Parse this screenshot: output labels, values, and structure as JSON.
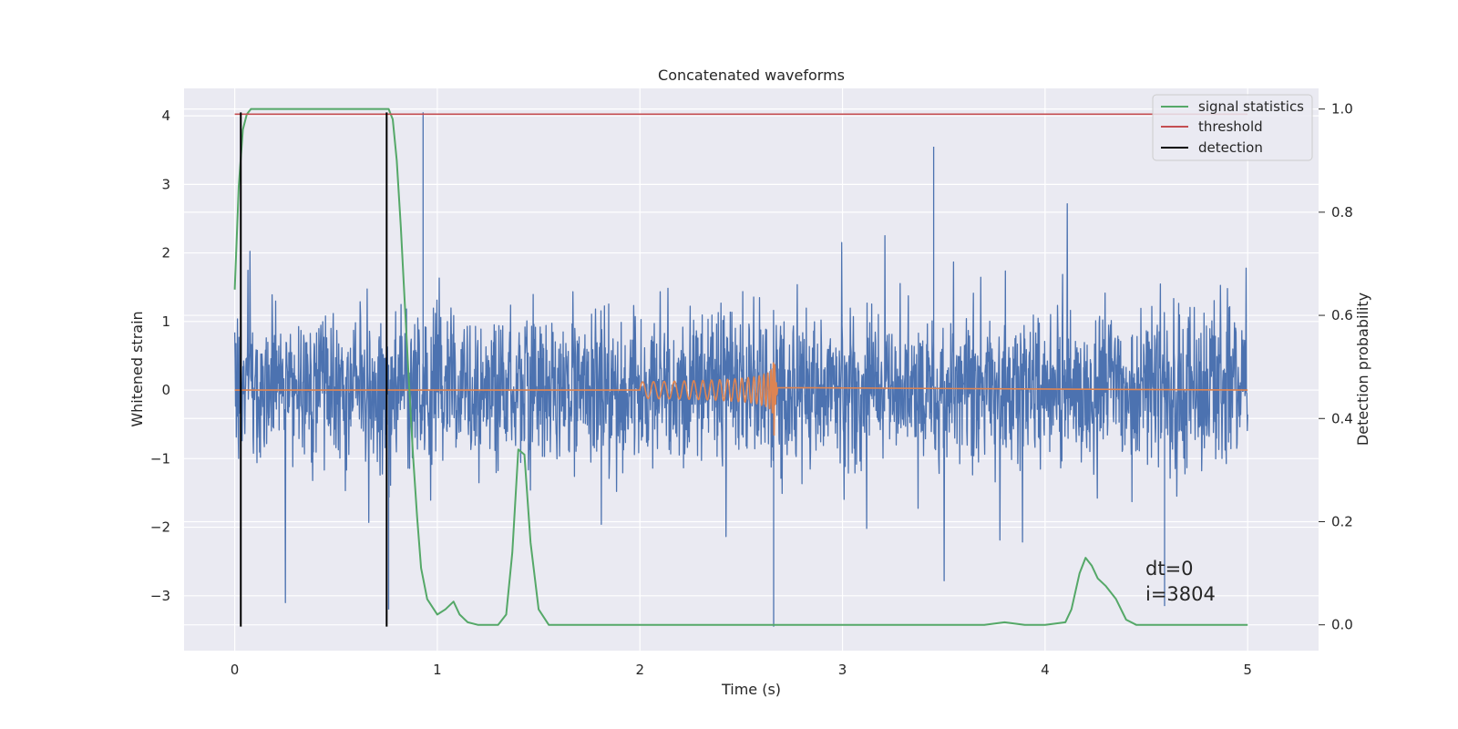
{
  "chart_data": {
    "type": "line",
    "title": "Concatenated waveforms",
    "xlabel": "Time (s)",
    "ylabel": "Whitened strain",
    "y2label": "Detection probability",
    "xlim": [
      -0.25,
      5.35
    ],
    "ylim": [
      -3.8,
      4.4
    ],
    "y2lim": [
      -0.05,
      1.04
    ],
    "x_ticks": [
      0,
      1,
      2,
      3,
      4,
      5
    ],
    "x_tick_labels": [
      "0",
      "1",
      "2",
      "3",
      "4",
      "5"
    ],
    "y_ticks": [
      -3,
      -2,
      -1,
      0,
      1,
      2,
      3,
      4
    ],
    "y_tick_labels": [
      "−3",
      "−2",
      "−1",
      "0",
      "1",
      "2",
      "3",
      "4"
    ],
    "y2_ticks": [
      0.0,
      0.2,
      0.4,
      0.6,
      0.8,
      1.0
    ],
    "y2_tick_labels": [
      "0.0",
      "0.2",
      "0.4",
      "0.6",
      "0.8",
      "1.0"
    ],
    "grid": true,
    "legend_position": "top-right",
    "legend": [
      "signal statistics",
      "threshold",
      "detection"
    ],
    "annotations": [
      "dt=0",
      "i=3804"
    ],
    "colors": {
      "background": "#eaeaf2",
      "grid": "#ffffff",
      "strain": "#4c72b0",
      "template": "#dd8452",
      "statistic": "#55a868",
      "threshold": "#c44e52",
      "detection": "#000000"
    },
    "series": [
      {
        "id": "whitened_strain",
        "axis": "left",
        "description": "noisy whitened strain, dense fluctuations over 0–5 s",
        "x_range": [
          0,
          5
        ],
        "typical_amplitude": 0.9,
        "peaks": [
          [
            0.93,
            4.05
          ],
          [
            0.76,
            -3.2
          ],
          [
            2.66,
            -3.45
          ],
          [
            3.45,
            3.55
          ],
          [
            4.59,
            -3.15
          ]
        ]
      },
      {
        "id": "template_waveform",
        "axis": "left",
        "description": "chirp waveform, zero outside 2.0–2.68 s",
        "x_range": [
          2.0,
          2.68
        ],
        "start_amplitude": 0.12,
        "peak_amplitude": 1.15,
        "merger_time": 2.66
      },
      {
        "name": "signal statistics",
        "axis": "right",
        "x": [
          0.0,
          0.02,
          0.04,
          0.06,
          0.08,
          0.1,
          0.2,
          0.4,
          0.6,
          0.7,
          0.72,
          0.76,
          0.78,
          0.8,
          0.82,
          0.84,
          0.86,
          0.88,
          0.9,
          0.92,
          0.95,
          1.0,
          1.04,
          1.08,
          1.11,
          1.15,
          1.2,
          1.3,
          1.34,
          1.37,
          1.4,
          1.43,
          1.46,
          1.5,
          1.55,
          1.6,
          2.0,
          2.5,
          3.0,
          3.5,
          3.7,
          3.8,
          3.9,
          4.0,
          4.1,
          4.13,
          4.17,
          4.2,
          4.23,
          4.26,
          4.3,
          4.35,
          4.4,
          4.45,
          4.5,
          4.6,
          4.8,
          5.0
        ],
        "y": [
          0.65,
          0.85,
          0.96,
          0.99,
          1.0,
          1.0,
          1.0,
          1.0,
          1.0,
          1.0,
          1.0,
          1.0,
          0.98,
          0.9,
          0.77,
          0.62,
          0.47,
          0.33,
          0.21,
          0.11,
          0.05,
          0.02,
          0.03,
          0.045,
          0.02,
          0.005,
          0.0,
          0.0,
          0.02,
          0.14,
          0.34,
          0.33,
          0.16,
          0.03,
          0.0,
          0.0,
          0.0,
          0.0,
          0.0,
          0.0,
          0.0,
          0.005,
          0.0,
          0.0,
          0.005,
          0.03,
          0.1,
          0.13,
          0.115,
          0.09,
          0.075,
          0.05,
          0.01,
          0.0,
          0.0,
          0.0,
          0.0,
          0.0
        ]
      },
      {
        "name": "threshold",
        "axis": "right",
        "x": [
          0,
          5
        ],
        "y": [
          0.99,
          0.99
        ]
      },
      {
        "name": "detection",
        "axis": "left",
        "x": [
          0.03,
          0.75
        ],
        "y_range": [
          -3.45,
          4.05
        ]
      }
    ]
  }
}
